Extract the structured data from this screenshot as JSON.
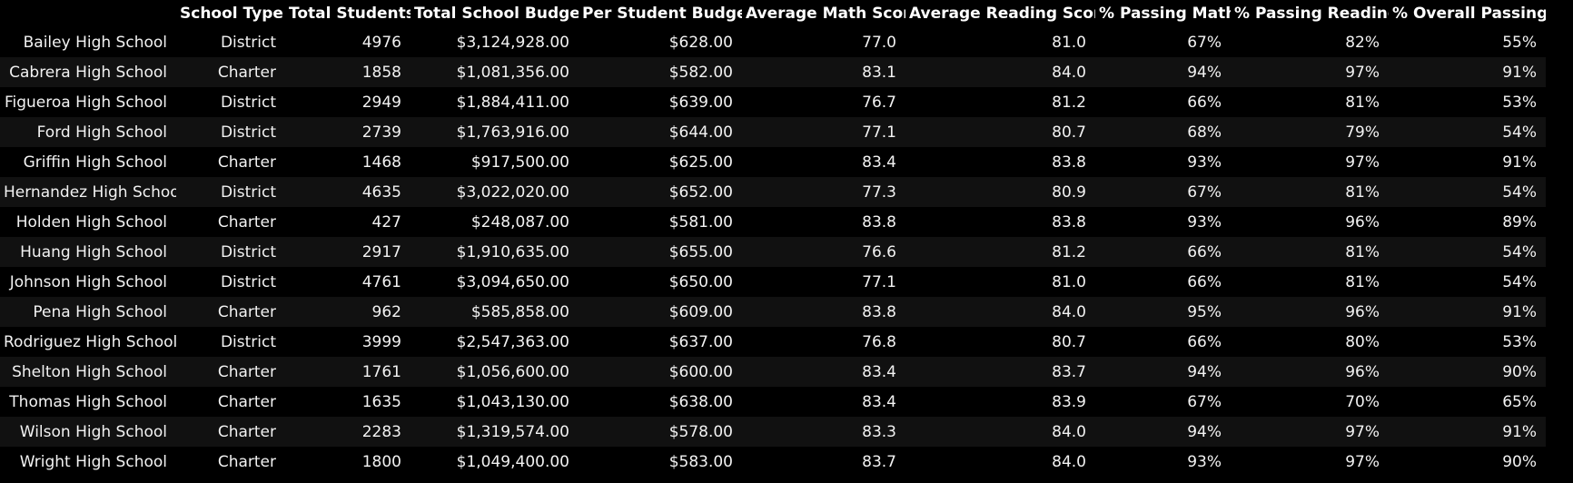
{
  "table": {
    "index_header": "",
    "columns": [
      "School Type",
      "Total Students",
      "Total School Budget",
      "Per Student Budget",
      "Average Math Score",
      "Average Reading Score",
      "% Passing Math",
      "% Passing Reading",
      "% Overall Passing"
    ],
    "rows": [
      {
        "name": "Bailey High School",
        "cells": [
          "District",
          "4976",
          "$3,124,928.00",
          "$628.00",
          "77.0",
          "81.0",
          "67%",
          "82%",
          "55%"
        ]
      },
      {
        "name": "Cabrera High School",
        "cells": [
          "Charter",
          "1858",
          "$1,081,356.00",
          "$582.00",
          "83.1",
          "84.0",
          "94%",
          "97%",
          "91%"
        ]
      },
      {
        "name": "Figueroa High School",
        "cells": [
          "District",
          "2949",
          "$1,884,411.00",
          "$639.00",
          "76.7",
          "81.2",
          "66%",
          "81%",
          "53%"
        ]
      },
      {
        "name": "Ford High School",
        "cells": [
          "District",
          "2739",
          "$1,763,916.00",
          "$644.00",
          "77.1",
          "80.7",
          "68%",
          "79%",
          "54%"
        ]
      },
      {
        "name": "Griffin High School",
        "cells": [
          "Charter",
          "1468",
          "$917,500.00",
          "$625.00",
          "83.4",
          "83.8",
          "93%",
          "97%",
          "91%"
        ]
      },
      {
        "name": "Hernandez High School",
        "cells": [
          "District",
          "4635",
          "$3,022,020.00",
          "$652.00",
          "77.3",
          "80.9",
          "67%",
          "81%",
          "54%"
        ]
      },
      {
        "name": "Holden High School",
        "cells": [
          "Charter",
          "427",
          "$248,087.00",
          "$581.00",
          "83.8",
          "83.8",
          "93%",
          "96%",
          "89%"
        ]
      },
      {
        "name": "Huang High School",
        "cells": [
          "District",
          "2917",
          "$1,910,635.00",
          "$655.00",
          "76.6",
          "81.2",
          "66%",
          "81%",
          "54%"
        ]
      },
      {
        "name": "Johnson High School",
        "cells": [
          "District",
          "4761",
          "$3,094,650.00",
          "$650.00",
          "77.1",
          "81.0",
          "66%",
          "81%",
          "54%"
        ]
      },
      {
        "name": "Pena High School",
        "cells": [
          "Charter",
          "962",
          "$585,858.00",
          "$609.00",
          "83.8",
          "84.0",
          "95%",
          "96%",
          "91%"
        ]
      },
      {
        "name": "Rodriguez High School",
        "cells": [
          "District",
          "3999",
          "$2,547,363.00",
          "$637.00",
          "76.8",
          "80.7",
          "66%",
          "80%",
          "53%"
        ]
      },
      {
        "name": "Shelton High School",
        "cells": [
          "Charter",
          "1761",
          "$1,056,600.00",
          "$600.00",
          "83.4",
          "83.7",
          "94%",
          "96%",
          "90%"
        ]
      },
      {
        "name": "Thomas High School",
        "cells": [
          "Charter",
          "1635",
          "$1,043,130.00",
          "$638.00",
          "83.4",
          "83.9",
          "67%",
          "70%",
          "65%"
        ]
      },
      {
        "name": "Wilson High School",
        "cells": [
          "Charter",
          "2283",
          "$1,319,574.00",
          "$578.00",
          "83.3",
          "84.0",
          "94%",
          "97%",
          "91%"
        ]
      },
      {
        "name": "Wright High School",
        "cells": [
          "Charter",
          "1800",
          "$1,049,400.00",
          "$583.00",
          "83.7",
          "84.0",
          "93%",
          "97%",
          "90%"
        ]
      }
    ]
  }
}
